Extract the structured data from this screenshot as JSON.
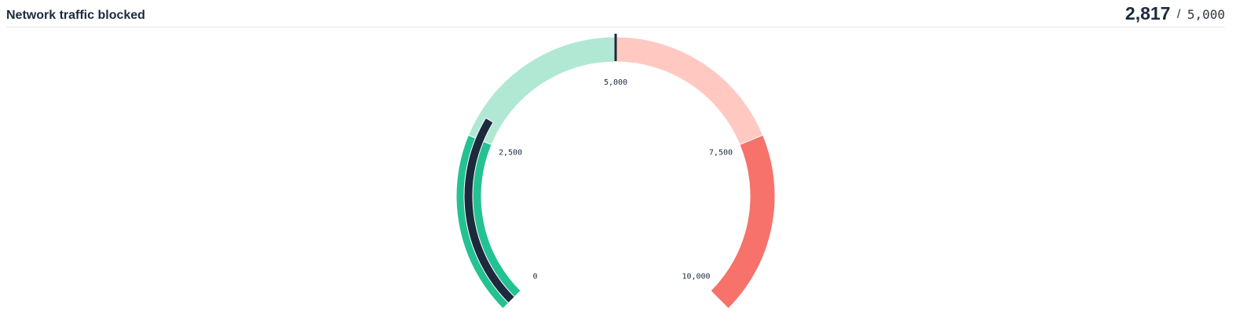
{
  "chart_data": {
    "type": "gauge",
    "title": "Network traffic blocked",
    "value": 2817,
    "value_label": "2,817",
    "separator": "/",
    "target": 5000,
    "target_label": "5,000",
    "ylim": [
      0,
      10000
    ],
    "yticks": [
      0,
      {
        "value": 2500,
        "label": "2,500"
      },
      {
        "value": 5000,
        "label": "5,000"
      },
      {
        "value": 7500,
        "label": "7,500"
      },
      {
        "value": 10000,
        "label": "10,000"
      }
    ],
    "bands": [
      {
        "from": 0,
        "to": 2500,
        "color": "#24c292"
      },
      {
        "from": 2500,
        "to": 5000,
        "color": "#b0e8d3"
      },
      {
        "from": 5000,
        "to": 7500,
        "color": "#ffc9c2"
      },
      {
        "from": 7500,
        "to": 10000,
        "color": "#f6726a"
      }
    ],
    "value_color": "#1d2a3e",
    "target_color": "#1d2a3e"
  }
}
